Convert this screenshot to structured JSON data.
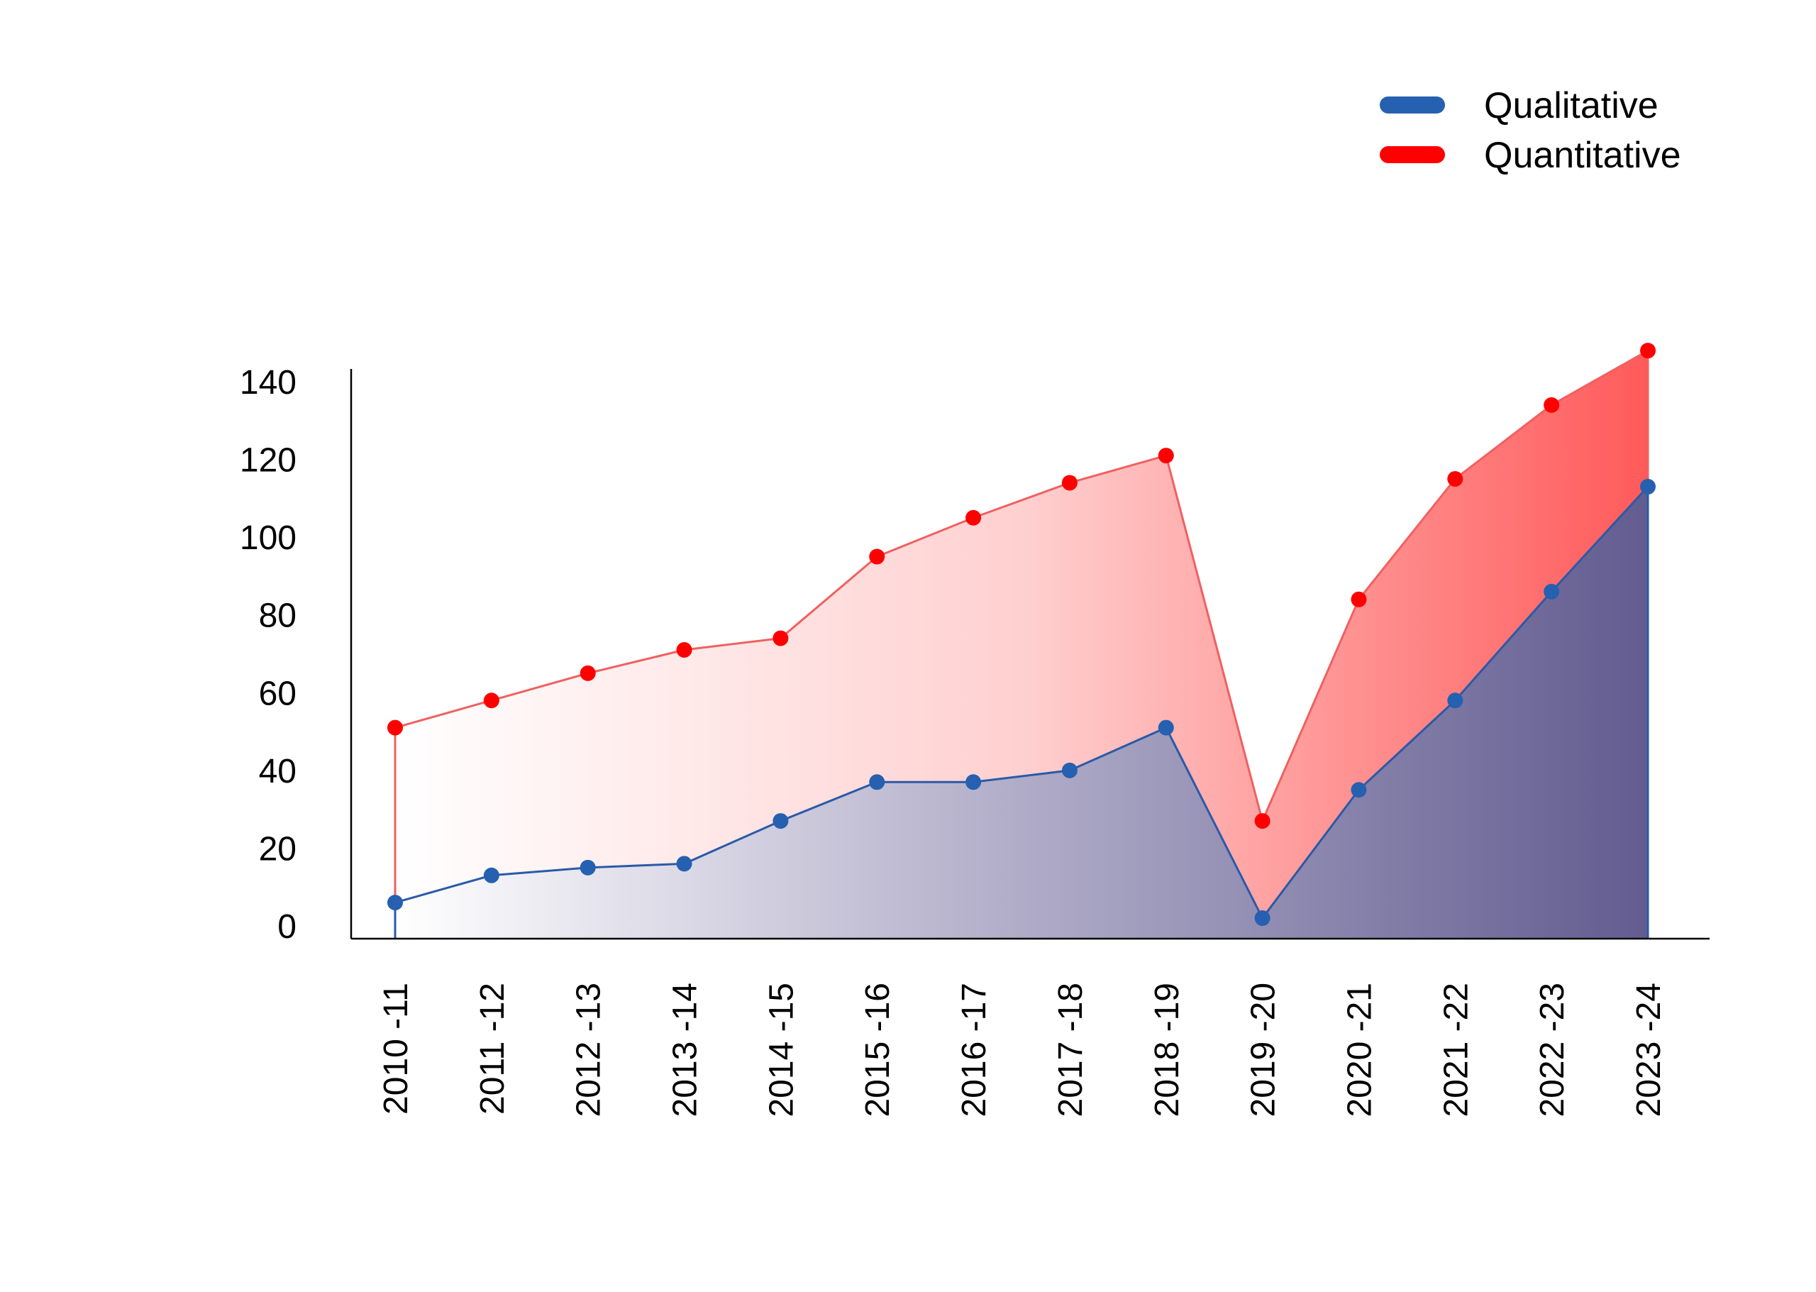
{
  "chart_data": {
    "type": "area",
    "title": "",
    "xlabel": "",
    "ylabel": "",
    "categories": [
      "2010 -11",
      "2011 -12",
      "2012 -13",
      "2013 -14",
      "2014 -15",
      "2015 -16",
      "2016 -17",
      "2017 -18",
      "2018 -19",
      "2019 -20",
      "2020 -21",
      "2021 -22",
      "2022 -23",
      "2023 -24"
    ],
    "ylim": [
      0,
      145
    ],
    "yticks": [
      0,
      20,
      40,
      60,
      80,
      100,
      120,
      140
    ],
    "grid": false,
    "legend_position": "top-right",
    "series": [
      {
        "name": "Quantitative",
        "color": "#ff0000",
        "line_color": "#f06060",
        "values": [
          51,
          58,
          65,
          71,
          74,
          95,
          105,
          114,
          121,
          27,
          84,
          115,
          134,
          148
        ]
      },
      {
        "name": "Qualitative",
        "color": "#2660b0",
        "line_color": "#2a5aa8",
        "values": [
          6,
          13,
          15,
          16,
          27,
          37,
          37,
          40,
          51,
          2,
          35,
          58,
          86,
          113
        ]
      }
    ]
  }
}
